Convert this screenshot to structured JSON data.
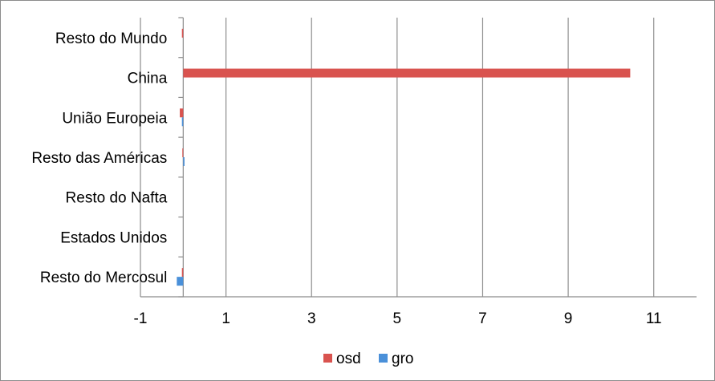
{
  "chart_data": {
    "type": "bar",
    "orientation": "horizontal",
    "categories": [
      "Resto do Mundo",
      "China",
      "União Europeia",
      "Resto das Américas",
      "Resto do Nafta",
      "Estados Unidos",
      "Resto do Mercosul"
    ],
    "series": [
      {
        "name": "osd",
        "color": "#d9534f",
        "values": [
          -0.03,
          10.45,
          -0.08,
          -0.02,
          0,
          0,
          -0.03
        ]
      },
      {
        "name": "gro",
        "color": "#4a90d9",
        "values": [
          0,
          0,
          -0.03,
          0.03,
          0,
          0,
          -0.15
        ]
      }
    ],
    "xlim": [
      -1,
      12
    ],
    "xticks": [
      -1,
      1,
      3,
      5,
      7,
      9,
      11
    ],
    "xlabel": "",
    "ylabel": "",
    "title": "",
    "grid": "vertical",
    "legend": "bottom"
  }
}
